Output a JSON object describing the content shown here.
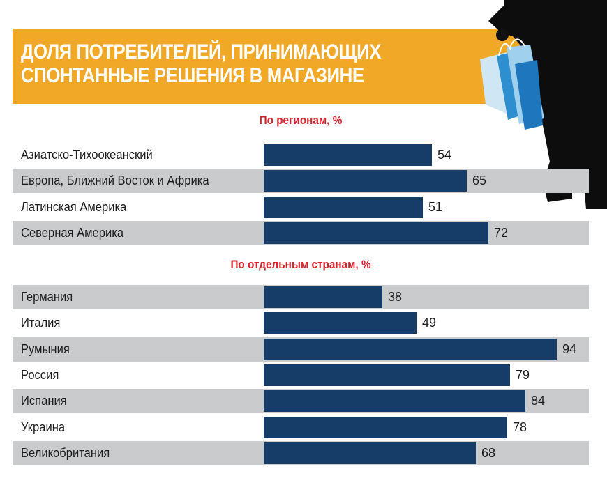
{
  "title": "ДОЛЯ ПОТРЕБИТЕЛЕЙ, ПРИНИМАЮЩИХ\nСПОНТАННЫЕ РЕШЕНИЯ В МАГАЗИНЕ",
  "colors": {
    "banner": "#f0a826",
    "bar": "#153d68",
    "section_title": "#d5222d",
    "row_shade": "#cacbcd"
  },
  "decoration": {
    "illustration": "person-with-shopping-bags-silhouette"
  },
  "chart_data": [
    {
      "type": "bar",
      "orientation": "horizontal",
      "title": "По регионам, %",
      "categories": [
        "Азиатско-Тихоокеанский",
        "Европа, Ближний Восток и Африка",
        "Латинская Америка",
        "Северная Америка"
      ],
      "values": [
        54,
        65,
        51,
        72
      ],
      "value_labels": [
        "54",
        "65",
        "51",
        "72"
      ],
      "xlim": [
        0,
        100
      ],
      "grid": false
    },
    {
      "type": "bar",
      "orientation": "horizontal",
      "title": "По отдельным странам, %",
      "categories": [
        "Германия",
        "Италия",
        "Румыния",
        "Россия",
        "Испания",
        "Украина",
        "Великобритания"
      ],
      "values": [
        38,
        49,
        94,
        79,
        84,
        78,
        68
      ],
      "value_labels": [
        "38",
        "49",
        "94",
        "79",
        "84",
        "78",
        "68"
      ],
      "xlim": [
        0,
        100
      ],
      "grid": false
    }
  ]
}
